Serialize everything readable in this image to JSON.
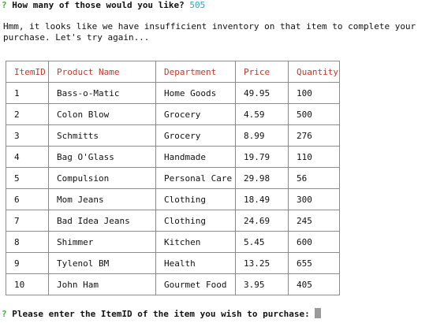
{
  "terminal": {
    "question": {
      "mark": "?",
      "text": "How many of those would you like?",
      "answer": "505"
    },
    "message": {
      "line1": "Hmm, it looks like we have insufficient inventory on that item to complete your",
      "line2": "purchase. Let's try again..."
    },
    "table": {
      "headers": [
        "ItemID",
        "Product Name",
        "Department",
        "Price",
        "Quantity"
      ],
      "rows": [
        [
          "1",
          "Bass-o-Matic",
          "Home Goods",
          "49.95",
          "100"
        ],
        [
          "2",
          "Colon Blow",
          "Grocery",
          "4.59",
          "500"
        ],
        [
          "3",
          "Schmitts",
          "Grocery",
          "8.99",
          "276"
        ],
        [
          "4",
          "Bag O'Glass",
          "Handmade",
          "19.79",
          "110"
        ],
        [
          "5",
          "Compulsion",
          "Personal Care",
          "29.98",
          "56"
        ],
        [
          "6",
          "Mom Jeans",
          "Clothing",
          "18.49",
          "300"
        ],
        [
          "7",
          "Bad Idea Jeans",
          "Clothing",
          "24.69",
          "245"
        ],
        [
          "8",
          "Shimmer",
          "Kitchen",
          "5.45",
          "600"
        ],
        [
          "9",
          "Tylenol BM",
          "Health",
          "13.25",
          "655"
        ],
        [
          "10",
          "John Ham",
          "Gourmet Food",
          "3.95",
          "405"
        ]
      ]
    },
    "prompt": {
      "mark": "?",
      "text": "Please enter the ItemID of the item you wish to purchase:"
    }
  },
  "colors": {
    "prompt_mark": "#2db52d",
    "answer": "#2aa6b8",
    "header_text": "#c0392b",
    "border": "#8c8c8c"
  }
}
